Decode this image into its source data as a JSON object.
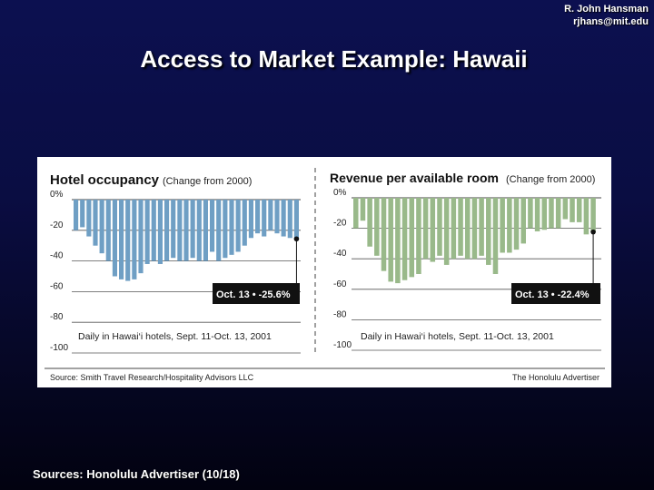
{
  "header": {
    "author": "R. John Hansman",
    "email": "rjhans@mit.edu",
    "title": "Access to Market Example: Hawaii"
  },
  "footer": {
    "sources": "Sources: Honolulu Advertiser (10/18)"
  },
  "figure": {
    "source_left": "Source: Smith Travel Research/Hospitality Advisors LLC",
    "source_right": "The Honolulu Advertiser"
  },
  "chart_data": [
    {
      "type": "bar",
      "title": "Hotel occupancy",
      "subtitle": "(Change from 2000)",
      "annotation": "Daily in Hawai‘i hotels, Sept. 11-Oct. 13, 2001",
      "callout": "Oct. 13 • -25.6%",
      "ytick_labels": [
        "0%",
        "-20",
        "-40",
        "-60",
        "-80",
        "-100"
      ],
      "ylim": [
        -100,
        0
      ],
      "color": "#6f9fc4",
      "values": [
        -20,
        -18,
        -24,
        -30,
        -35,
        -40,
        -50,
        -52,
        -53,
        -52,
        -48,
        -42,
        -40,
        -42,
        -40,
        -38,
        -40,
        -40,
        -38,
        -40,
        -40,
        -34,
        -40,
        -38,
        -36,
        -34,
        -30,
        -25,
        -22,
        -24,
        -20,
        -22,
        -24,
        -25,
        -25.6
      ],
      "last_value": -25.6
    },
    {
      "type": "bar",
      "title": "Revenue per available room",
      "subtitle": "(Change from 2000)",
      "annotation": "Daily in Hawai‘i hotels, Sept. 11-Oct. 13, 2001",
      "callout": "Oct. 13 • -22.4%",
      "ytick_labels": [
        "0%",
        "-20",
        "-40",
        "-60",
        "-80",
        "-100"
      ],
      "ylim": [
        -100,
        0
      ],
      "color": "#99b98a",
      "values": [
        -20,
        -15,
        -32,
        -38,
        -48,
        -55,
        -56,
        -54,
        -52,
        -50,
        -40,
        -42,
        -38,
        -44,
        -40,
        -38,
        -40,
        -40,
        -38,
        -44,
        -50,
        -36,
        -36,
        -34,
        -30,
        -20,
        -22,
        -21,
        -20,
        -20,
        -14,
        -16,
        -16,
        -24,
        -22.4
      ],
      "last_value": -22.4
    }
  ]
}
